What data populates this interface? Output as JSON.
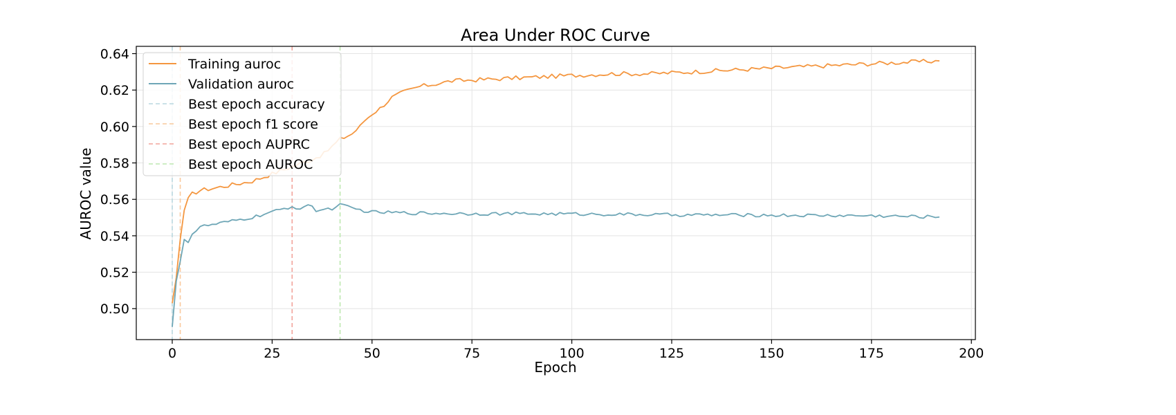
{
  "chart_data": {
    "type": "line",
    "title": "Area Under ROC Curve",
    "xlabel": "Epoch",
    "ylabel": "AUROC value",
    "xlim": [
      -9,
      201
    ],
    "ylim": [
      0.483,
      0.644
    ],
    "xticks": [
      0,
      25,
      50,
      75,
      100,
      125,
      150,
      175,
      200
    ],
    "yticks": [
      0.5,
      0.52,
      0.54,
      0.56,
      0.58,
      0.6,
      0.62,
      0.64
    ],
    "grid": true,
    "legend_position": "top-left",
    "series": [
      {
        "name": "Training auroc",
        "color": "#f4963f",
        "anchors": [
          [
            0,
            0.503
          ],
          [
            1,
            0.517
          ],
          [
            2,
            0.538
          ],
          [
            3,
            0.554
          ],
          [
            4,
            0.56
          ],
          [
            5,
            0.563
          ],
          [
            7,
            0.565
          ],
          [
            10,
            0.566
          ],
          [
            15,
            0.568
          ],
          [
            20,
            0.57
          ],
          [
            25,
            0.574
          ],
          [
            30,
            0.578
          ],
          [
            35,
            0.582
          ],
          [
            38,
            0.585
          ],
          [
            40,
            0.589
          ],
          [
            42,
            0.593
          ],
          [
            45,
            0.596
          ],
          [
            47,
            0.6
          ],
          [
            48,
            0.603
          ],
          [
            50,
            0.607
          ],
          [
            52,
            0.61
          ],
          [
            55,
            0.616
          ],
          [
            58,
            0.619
          ],
          [
            62,
            0.622
          ],
          [
            65,
            0.623
          ],
          [
            70,
            0.625
          ],
          [
            80,
            0.626
          ],
          [
            90,
            0.627
          ],
          [
            100,
            0.628
          ],
          [
            110,
            0.629
          ],
          [
            120,
            0.629
          ],
          [
            130,
            0.63
          ],
          [
            140,
            0.631
          ],
          [
            150,
            0.632
          ],
          [
            160,
            0.633
          ],
          [
            170,
            0.634
          ],
          [
            180,
            0.635
          ],
          [
            192,
            0.636
          ]
        ],
        "noise": 0.0012
      },
      {
        "name": "Validation auroc",
        "color": "#6ea6b6",
        "anchors": [
          [
            0,
            0.49
          ],
          [
            1,
            0.515
          ],
          [
            2,
            0.526
          ],
          [
            3,
            0.538
          ],
          [
            4,
            0.537
          ],
          [
            5,
            0.541
          ],
          [
            7,
            0.545
          ],
          [
            10,
            0.546
          ],
          [
            15,
            0.548
          ],
          [
            20,
            0.55
          ],
          [
            25,
            0.553
          ],
          [
            30,
            0.556
          ],
          [
            32,
            0.555
          ],
          [
            34,
            0.557
          ],
          [
            36,
            0.554
          ],
          [
            40,
            0.555
          ],
          [
            42,
            0.557
          ],
          [
            45,
            0.555
          ],
          [
            50,
            0.553
          ],
          [
            60,
            0.5525
          ],
          [
            75,
            0.5522
          ],
          [
            100,
            0.552
          ],
          [
            125,
            0.5515
          ],
          [
            150,
            0.5513
          ],
          [
            175,
            0.551
          ],
          [
            192,
            0.5503
          ]
        ],
        "noise": 0.0009
      }
    ],
    "reference_lines": [
      {
        "name": "Best epoch accuracy",
        "x": 0,
        "color": "#b9d7df"
      },
      {
        "name": "Best epoch f1 score",
        "x": 2,
        "color": "#f9c99c"
      },
      {
        "name": "Best epoch AUPRC",
        "x": 30,
        "color": "#f2a39a"
      },
      {
        "name": "Best epoch AUROC",
        "x": 42,
        "color": "#bde8b0"
      }
    ]
  }
}
